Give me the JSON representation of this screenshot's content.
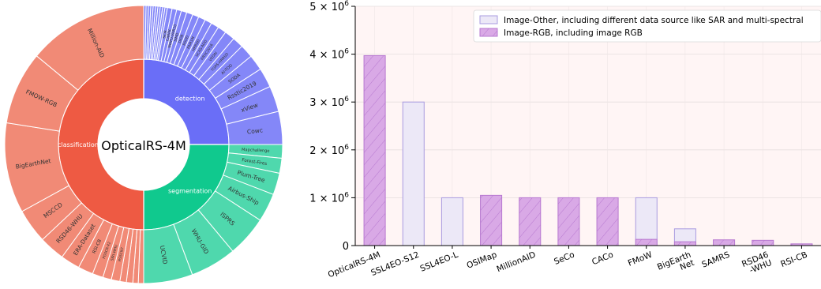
{
  "chart_data": [
    {
      "type": "sunburst",
      "center_label": "OpticalRS-4M",
      "colors": {
        "detection": "#6a6ef7",
        "detection_outer": "#8487f8",
        "classification": "#ee5a43",
        "classification_outer": "#f18a76",
        "segmentation": "#10c98e",
        "segmentation_outer": "#4fd8ad"
      },
      "categories": [
        {
          "name": "detection",
          "children": [
            {
              "name": "",
              "weight": 0.3
            },
            {
              "name": "",
              "weight": 0.3
            },
            {
              "name": "",
              "weight": 0.3
            },
            {
              "name": "",
              "weight": 0.3
            },
            {
              "name": "",
              "weight": 0.3
            },
            {
              "name": "",
              "weight": 0.3
            },
            {
              "name": "",
              "weight": 0.3
            },
            {
              "name": "",
              "weight": 0.3
            },
            {
              "name": "",
              "weight": 0.3
            },
            {
              "name": "",
              "weight": 0.3
            },
            {
              "name": "SIOR",
              "weight": 0.6
            },
            {
              "name": "CARPK",
              "weight": 0.6
            },
            {
              "name": "NWPU-VHR10",
              "weight": 0.6
            },
            {
              "name": "SIMD",
              "weight": 0.7
            },
            {
              "name": "DIOR",
              "weight": 0.8
            },
            {
              "name": "RSOD",
              "weight": 0.8
            },
            {
              "name": "FAIR1M",
              "weight": 0.9
            },
            {
              "name": "HRRSD",
              "weight": 0.9
            },
            {
              "name": "UCAS-AOD",
              "weight": 1.0
            },
            {
              "name": "HRSC2016",
              "weight": 1.1
            },
            {
              "name": "VEDAI",
              "weight": 1.3
            },
            {
              "name": "TGRS-HRRSD",
              "weight": 1.4
            },
            {
              "name": "AI-TOD",
              "weight": 1.7
            },
            {
              "name": "SODA",
              "weight": 2.0
            },
            {
              "name": "Rsstic2019",
              "weight": 2.5
            },
            {
              "name": "xView",
              "weight": 3.3
            },
            {
              "name": "Cowc",
              "weight": 4.2
            }
          ]
        },
        {
          "name": "segmentation",
          "children": [
            {
              "name": "Mapchallenge",
              "weight": 1.0
            },
            {
              "name": "Forest-Fires",
              "weight": 1.1
            },
            {
              "name": "Plum-Tree",
              "weight": 1.6
            },
            {
              "name": "Airbus-Ship",
              "weight": 2.1
            },
            {
              "name": "ISPRS",
              "weight": 3.0
            },
            {
              "name": "WHU-GID",
              "weight": 3.4
            },
            {
              "name": "UCVID",
              "weight": 3.6
            }
          ]
        },
        {
          "name": "classification",
          "children": [
            {
              "name": "",
              "weight": 0.25
            },
            {
              "name": "",
              "weight": 0.25
            },
            {
              "name": "",
              "weight": 0.3
            },
            {
              "name": "",
              "weight": 0.3
            },
            {
              "name": "RSSCN7",
              "weight": 0.4
            },
            {
              "name": "SIRI-WHU",
              "weight": 0.4
            },
            {
              "name": "FGSCR-42",
              "weight": 0.5
            },
            {
              "name": "RSI-CB",
              "weight": 0.7
            },
            {
              "name": "ERA-Dataset",
              "weight": 0.9
            },
            {
              "name": "RSD46-WHU",
              "weight": 1.2
            },
            {
              "name": "MSCCD",
              "weight": 1.6
            },
            {
              "name": "BigEarthNet",
              "weight": 4.2
            },
            {
              "name": "FMOW-RGB",
              "weight": 3.4
            },
            {
              "name": "Million-AID",
              "weight": 5.6
            }
          ]
        }
      ]
    },
    {
      "type": "bar",
      "categories": [
        "OpticalRS-4M",
        "SSL4EO-S12",
        "SSL4EO-L",
        "OSIMap",
        "MillionAID",
        "SeCo",
        "CACo",
        "FMoW",
        "BigEarth\nNet",
        "SAMRS",
        "RSD46\n-WHU",
        "RSI-CB"
      ],
      "series": [
        {
          "name": "Image-Other, including different data source like SAR and multi-spectral",
          "values": [
            0,
            3000000,
            1000000,
            0,
            0,
            0,
            0,
            1000000,
            350000,
            0,
            0,
            0
          ],
          "color": "#ece8f7",
          "edge": "#a99be0"
        },
        {
          "name": "Image-RGB, including image RGB",
          "values": [
            3970000,
            0,
            0,
            1050000,
            1000000,
            1000000,
            1000000,
            130000,
            80000,
            120000,
            110000,
            36000
          ],
          "color": "#d9a9e6",
          "edge": "#b778d0"
        }
      ],
      "ylim": [
        0,
        5000000
      ],
      "yticks": [
        {
          "value": 0,
          "base": "0",
          "exp": ""
        },
        {
          "value": 1000000,
          "base": "1 × 10",
          "exp": "6"
        },
        {
          "value": 2000000,
          "base": "2 × 10",
          "exp": "6"
        },
        {
          "value": 3000000,
          "base": "3 × 10",
          "exp": "6"
        },
        {
          "value": 4000000,
          "base": "4 × 10",
          "exp": "6"
        },
        {
          "value": 5000000,
          "base": "5 × 10",
          "exp": "6"
        }
      ],
      "grid": true,
      "legend": "top-right",
      "plot_background": "#fff5f5"
    }
  ]
}
